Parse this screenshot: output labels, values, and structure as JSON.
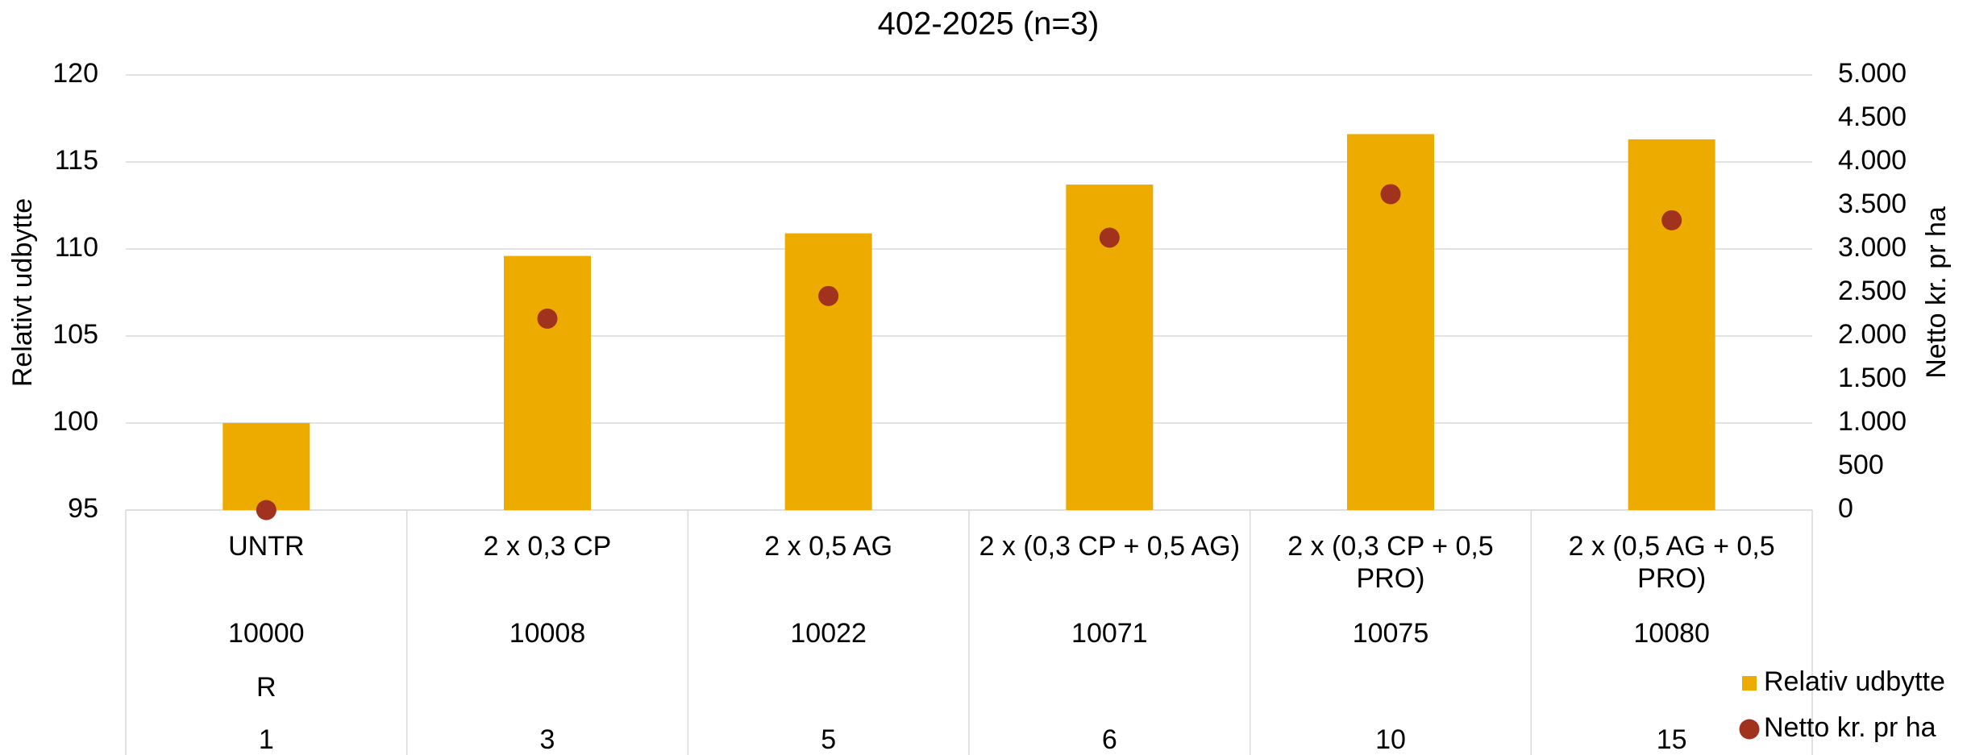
{
  "chart_data": {
    "type": "bar",
    "title": "402-2025 (n=3)",
    "y_label": "Relativt udbytte",
    "y2_label": "Netto kr. pr ha",
    "categories": [
      "UNTR",
      "2 x 0,3 CP",
      "2 x 0,5 AG",
      "2 x (0,3 CP + 0,5 AG)",
      "2 x (0,3 CP + 0,5 PRO)",
      "2 x (0,5 AG + 0,5 PRO)"
    ],
    "category_codes": [
      "10000",
      "10008",
      "10022",
      "10071",
      "10075",
      "10080"
    ],
    "category_notes": [
      "R",
      null,
      null,
      null,
      null,
      null
    ],
    "category_numbers": [
      "1",
      "3",
      "5",
      "6",
      "10",
      "15"
    ],
    "series": [
      {
        "name": "Relativ udbytte",
        "type": "bar",
        "color": "#EDAB00",
        "values": [
          100,
          109.6,
          110.9,
          113.7,
          116.6,
          116.3
        ]
      },
      {
        "name": "Netto kr. pr ha",
        "type": "scatter",
        "axis": "y2",
        "color": "#A0321E",
        "values": [
          0,
          2200,
          2460,
          3130,
          3630,
          3330
        ]
      }
    ],
    "ylim": [
      95,
      120
    ],
    "yticks": [
      95,
      100,
      105,
      110,
      115,
      120
    ],
    "y2lim": [
      0,
      5000
    ],
    "y2ticks": [
      0,
      500,
      {
        "value": 1000,
        "label": "1.000"
      },
      {
        "value": 1500,
        "label": "1.500"
      },
      {
        "value": 2000,
        "label": "2.000"
      },
      {
        "value": 2500,
        "label": "2.500"
      },
      {
        "value": 3000,
        "label": "3.000"
      },
      {
        "value": 3500,
        "label": "3.500"
      },
      {
        "value": 4000,
        "label": "4.000"
      },
      {
        "value": 4500,
        "label": "4.500"
      },
      {
        "value": 5000,
        "label": "5.000"
      }
    ],
    "grid": true,
    "legend": "bottom-right"
  }
}
